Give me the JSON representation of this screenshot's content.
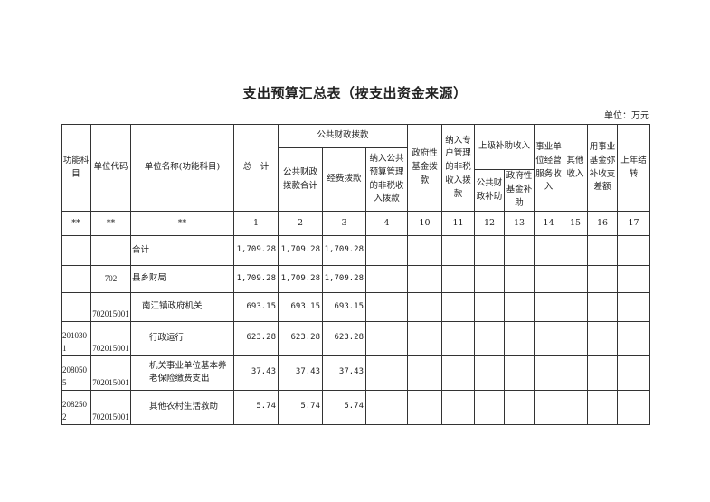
{
  "title": "支出预算汇总表（按支出资金来源）",
  "unit_label": "单位：万元",
  "headers": {
    "func_subject": "功能科目",
    "unit_code": "单位代码",
    "unit_name": "单位名称(功能科目)",
    "total": "总　计",
    "public_finance": "公共财政拨款",
    "public_finance_total": "公共财政拨款合计",
    "expense_allocation": "经费拨款",
    "nontax_public_budget": "纳入公共预算管理的非税收入拨款",
    "gov_fund": "政府性基金拨款",
    "nontax_special": "纳入专户管理的非税收入拨款",
    "superior_subsidy": "上级补助收入",
    "public_finance_subsidy": "公共财政补助",
    "gov_fund_subsidy": "政府性基金补助",
    "business_income": "事业单位经营服务收入",
    "other_income": "其他收入",
    "fund_make_up": "用事业基金弥补收支差额",
    "carryover": "上年结转"
  },
  "index_row": [
    "**",
    "**",
    "**",
    "1",
    "2",
    "3",
    "4",
    "10",
    "11",
    "12",
    "13",
    "14",
    "15",
    "16",
    "17"
  ],
  "rows": [
    {
      "func": "",
      "code": "",
      "name": "合计",
      "total": "1,709.28",
      "pf_total": "1,709.28",
      "expense": "1,709.28"
    },
    {
      "func": "",
      "code": "702",
      "name": "县乡财局",
      "total": "1,709.28",
      "pf_total": "1,709.28",
      "expense": "1,709.28"
    },
    {
      "func": "",
      "code": "702015001",
      "name": "南江镇政府机关",
      "total": "693.15",
      "pf_total": "693.15",
      "expense": "693.15"
    },
    {
      "func": "2010301",
      "code": "702015001",
      "name": "行政运行",
      "total": "623.28",
      "pf_total": "623.28",
      "expense": "623.28"
    },
    {
      "func": "2080505",
      "code": "702015001",
      "name": "机关事业单位基本养老保险缴费支出",
      "total": "37.43",
      "pf_total": "37.43",
      "expense": "37.43"
    },
    {
      "func": "2082502",
      "code": "702015001",
      "name": "其他农村生活救助",
      "total": "5.74",
      "pf_total": "5.74",
      "expense": "5.74"
    }
  ]
}
